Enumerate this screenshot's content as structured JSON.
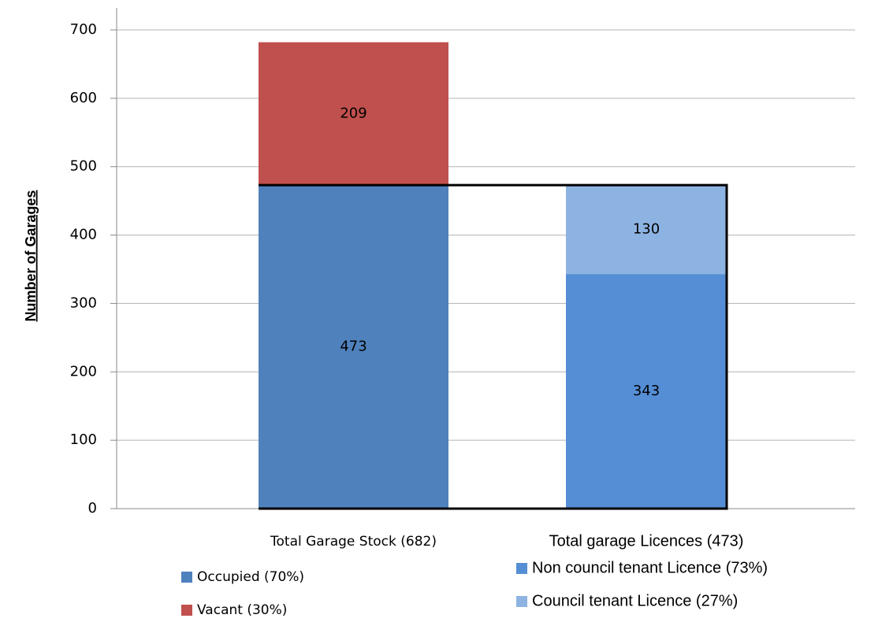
{
  "chart_data": {
    "type": "stacked_bar",
    "y_label": "Number of Garages",
    "categories": [
      "Total Garage Stock (682)",
      "Total garage Licences (473)"
    ],
    "series": [
      {
        "name": "Occupied (70%)",
        "color": "#4f81bd",
        "values": [
          473,
          null
        ]
      },
      {
        "name": "Vacant (30%)",
        "color": "#c0504d",
        "values": [
          209,
          null
        ]
      },
      {
        "name": "Non council tenant Licence  (73%)",
        "color": "#558ed5",
        "values": [
          null,
          343
        ]
      },
      {
        "name": "Council tenant Licence (27%)",
        "color": "#8db3e2",
        "values": [
          null,
          130
        ]
      }
    ],
    "ylim": [
      0,
      700
    ],
    "yticks": [
      0,
      100,
      200,
      300,
      400,
      500,
      600,
      700
    ],
    "grid": true
  }
}
